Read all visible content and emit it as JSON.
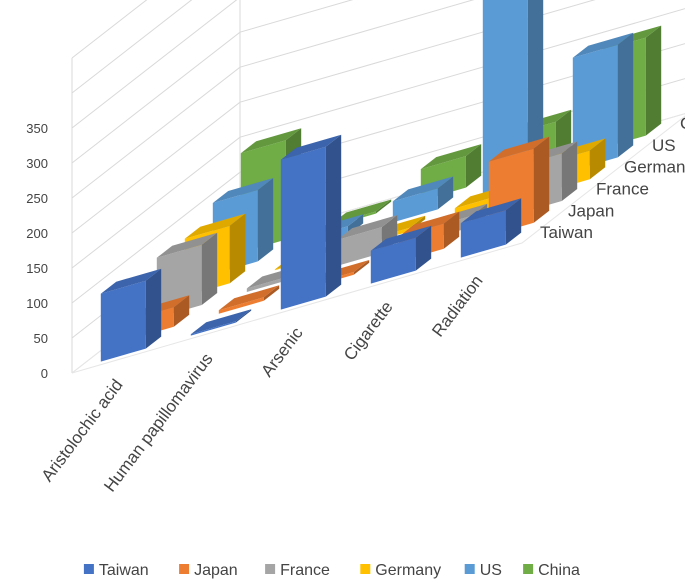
{
  "chart_data": {
    "type": "bar",
    "subtype": "3d-column",
    "title": "",
    "xlabel": "",
    "ylabel": "",
    "ylim": [
      0,
      350
    ],
    "yticks": [
      "0",
      "50",
      "100",
      "150",
      "200",
      "250",
      "300",
      "350"
    ],
    "categories": [
      "Aristolochic acid",
      "Human papillomavirus",
      "Arsenic",
      "Cigarette",
      "Radiation"
    ],
    "series": [
      {
        "name": "Taiwan",
        "color": "#4472C4",
        "values": [
          97,
          2,
          214,
          47,
          49
        ]
      },
      {
        "name": "Japan",
        "color": "#ED7D31",
        "values": [
          28,
          5,
          4,
          36,
          106
        ]
      },
      {
        "name": "France",
        "color": "#A5A5A5",
        "values": [
          86,
          5,
          37,
          16,
          68
        ]
      },
      {
        "name": "Germany",
        "color": "#FFC000",
        "values": [
          82,
          1,
          5,
          14,
          41
        ]
      },
      {
        "name": "US",
        "color": "#5B9BD5",
        "values": [
          102,
          13,
          30,
          313,
          161
        ]
      },
      {
        "name": "China",
        "color": "#70AD47",
        "values": [
          142,
          3,
          45,
          57,
          140
        ]
      }
    ],
    "legend_position": "bottom",
    "grid": true
  }
}
